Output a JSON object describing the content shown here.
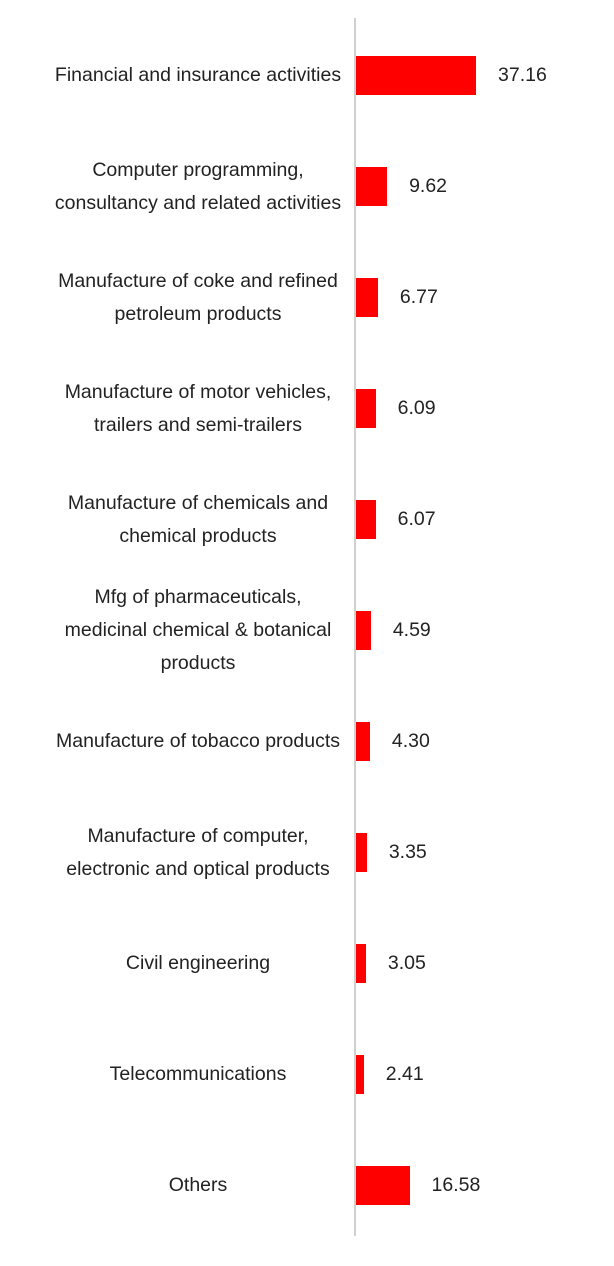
{
  "chart_data": {
    "type": "bar",
    "orientation": "horizontal",
    "color": "#ff0000",
    "categories": [
      "Financial and insurance activities",
      "Computer programming, consultancy and related activities",
      "Manufacture of coke and refined petroleum products",
      "Manufacture of motor vehicles, trailers and semi-trailers",
      "Manufacture of chemicals and chemical products",
      "Mfg of pharmaceuticals, medicinal chemical & botanical products",
      "Manufacture of tobacco products",
      "Manufacture of computer, electronic and optical products",
      "Civil engineering",
      "Telecommunications",
      "Others"
    ],
    "values": [
      37.16,
      9.62,
      6.77,
      6.09,
      6.07,
      4.59,
      4.3,
      3.35,
      3.05,
      2.41,
      16.58
    ],
    "value_labels": [
      "37.16",
      "9.62",
      "6.77",
      "6.09",
      "6.07",
      "4.59",
      "4.30",
      "3.35",
      "3.05",
      "2.41",
      "16.58"
    ]
  }
}
